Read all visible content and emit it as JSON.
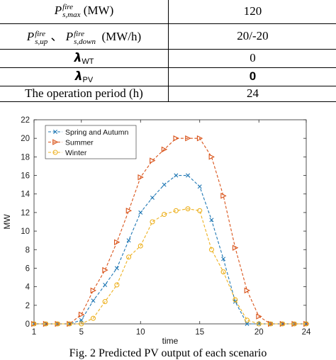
{
  "table": {
    "rows": [
      {
        "symbol": "P",
        "sup": "fire",
        "sub": "s,max",
        "unit": "(MW)",
        "value": "120"
      },
      {
        "symbol1": "P",
        "sup1": "fire",
        "sub1": "s,up",
        "sep": "、",
        "symbol2": "P",
        "sup2": "fire",
        "sub2": "s,down",
        "unit": "(MW/h)",
        "value": "20/-20"
      },
      {
        "symbol": "λ",
        "sub": "WT",
        "value": "0"
      },
      {
        "symbol": "λ",
        "sub": "PV",
        "value": "0"
      },
      {
        "label": "The operation period (h)",
        "value": "24"
      }
    ]
  },
  "chart_data": {
    "type": "line",
    "xlabel": "time",
    "ylabel": "MW",
    "xlim": [
      1,
      24
    ],
    "ylim": [
      0,
      22
    ],
    "xticks": [
      1,
      5,
      10,
      15,
      20,
      24
    ],
    "yticks": [
      0,
      2,
      4,
      6,
      8,
      10,
      12,
      14,
      16,
      18,
      20,
      22
    ],
    "grid": false,
    "legend_position": "top-left",
    "x": [
      1,
      2,
      3,
      4,
      5,
      6,
      7,
      8,
      9,
      10,
      11,
      12,
      13,
      14,
      15,
      16,
      17,
      18,
      19,
      20,
      21,
      22,
      23,
      24
    ],
    "series": [
      {
        "name": "Spring and Autumn",
        "color": "#1f77b4",
        "marker": "x",
        "values": [
          0,
          0,
          0,
          0,
          0.4,
          2.5,
          4.2,
          6.0,
          9.0,
          12.0,
          13.6,
          15.0,
          16.0,
          16.0,
          14.8,
          11.2,
          7.0,
          2.4,
          0,
          0,
          0,
          0,
          0,
          0
        ]
      },
      {
        "name": "Summer",
        "color": "#d95319",
        "marker": "triangle-right",
        "values": [
          0,
          0,
          0,
          0,
          1.0,
          3.6,
          5.8,
          8.8,
          12.2,
          15.8,
          17.6,
          18.8,
          20.0,
          20.0,
          20.0,
          18.0,
          13.8,
          8.2,
          3.6,
          0.8,
          0,
          0,
          0,
          0
        ]
      },
      {
        "name": "Winter",
        "color": "#edb120",
        "marker": "circle",
        "values": [
          0,
          0,
          0,
          0,
          0,
          0.6,
          2.4,
          4.2,
          7.2,
          8.4,
          11.0,
          11.8,
          12.2,
          12.4,
          12.2,
          8.0,
          5.6,
          2.6,
          0.4,
          0,
          0,
          0,
          0,
          0
        ]
      }
    ]
  },
  "caption": "Fig. 2 Predicted PV output of each scenario"
}
